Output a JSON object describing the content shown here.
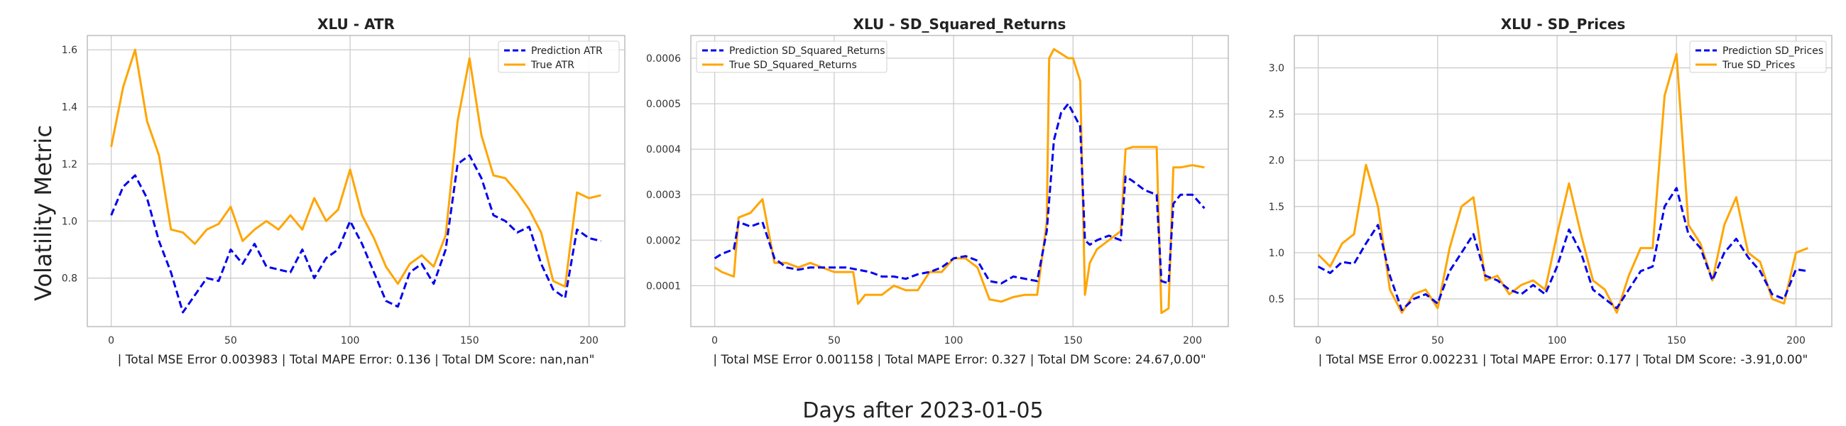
{
  "figure": {
    "xlabel": "Days after 2023-01-05",
    "ylabel": "Volatility Metric"
  },
  "colors": {
    "prediction": "#0000ee",
    "true": "#ffa500",
    "grid": "#cccccc",
    "frame": "#bdbdbd"
  },
  "chart_data": [
    {
      "type": "line",
      "title": "XLU - ATR",
      "caption": "| Total MSE Error 0.003983 | Total MAPE Error: 0.136 | Total DM Score: nan,nan\"",
      "xlim": [
        -10,
        215
      ],
      "ylim": [
        0.63,
        1.65
      ],
      "xticks": [
        0,
        50,
        100,
        150,
        200
      ],
      "yticks": [
        0.8,
        1.0,
        1.2,
        1.4,
        1.6
      ],
      "ytick_labels": [
        "0.8",
        "1.0",
        "1.2",
        "1.4",
        "1.6"
      ],
      "grid": true,
      "legend": "top-right",
      "series": [
        {
          "name": "Prediction ATR",
          "style": "dashed",
          "color": "#0000ee",
          "x": [
            0,
            5,
            10,
            15,
            20,
            25,
            30,
            35,
            40,
            45,
            50,
            55,
            60,
            65,
            70,
            75,
            80,
            85,
            90,
            95,
            100,
            105,
            110,
            115,
            120,
            125,
            130,
            135,
            140,
            145,
            150,
            155,
            160,
            165,
            170,
            175,
            180,
            185,
            190,
            195,
            200,
            205
          ],
          "y": [
            1.02,
            1.12,
            1.16,
            1.08,
            0.93,
            0.82,
            0.68,
            0.74,
            0.8,
            0.79,
            0.9,
            0.85,
            0.92,
            0.84,
            0.83,
            0.82,
            0.9,
            0.8,
            0.87,
            0.9,
            1.0,
            0.92,
            0.82,
            0.72,
            0.7,
            0.82,
            0.85,
            0.78,
            0.9,
            1.2,
            1.23,
            1.15,
            1.02,
            1.0,
            0.96,
            0.98,
            0.85,
            0.76,
            0.73,
            0.97,
            0.94,
            0.93
          ]
        },
        {
          "name": "True ATR",
          "style": "solid",
          "color": "#ffa500",
          "x": [
            0,
            5,
            10,
            15,
            20,
            25,
            30,
            35,
            40,
            45,
            50,
            55,
            60,
            65,
            70,
            75,
            80,
            85,
            90,
            95,
            100,
            105,
            110,
            115,
            120,
            125,
            130,
            135,
            140,
            145,
            150,
            155,
            160,
            165,
            170,
            175,
            180,
            185,
            190,
            195,
            200,
            205
          ],
          "y": [
            1.26,
            1.47,
            1.6,
            1.35,
            1.23,
            0.97,
            0.96,
            0.92,
            0.97,
            0.99,
            1.05,
            0.93,
            0.97,
            1.0,
            0.97,
            1.02,
            0.97,
            1.08,
            1.0,
            1.04,
            1.18,
            1.02,
            0.94,
            0.84,
            0.78,
            0.85,
            0.88,
            0.84,
            0.95,
            1.35,
            1.57,
            1.3,
            1.16,
            1.15,
            1.1,
            1.04,
            0.96,
            0.79,
            0.77,
            1.1,
            1.08,
            1.09
          ]
        }
      ]
    },
    {
      "type": "line",
      "title": "XLU - SD_Squared_Returns",
      "caption": "| Total MSE Error 0.001158 | Total MAPE Error: 0.327 | Total DM Score: 24.67,0.00\"",
      "xlim": [
        -10,
        215
      ],
      "ylim": [
        1e-05,
        0.00065
      ],
      "xticks": [
        0,
        50,
        100,
        150,
        200
      ],
      "yticks": [
        0.0001,
        0.0002,
        0.0003,
        0.0004,
        0.0005,
        0.0006
      ],
      "ytick_labels": [
        "0.0001",
        "0.0002",
        "0.0003",
        "0.0004",
        "0.0005",
        "0.0006"
      ],
      "grid": true,
      "legend": "top-left",
      "series": [
        {
          "name": "Prediction SD_Squared_Returns",
          "style": "dashed",
          "color": "#0000ee",
          "x": [
            0,
            3,
            8,
            10,
            15,
            20,
            25,
            30,
            35,
            40,
            45,
            50,
            55,
            60,
            65,
            70,
            75,
            80,
            85,
            90,
            95,
            100,
            105,
            110,
            115,
            120,
            125,
            130,
            135,
            139,
            142,
            145,
            148,
            150,
            153,
            155,
            157,
            160,
            165,
            170,
            172,
            175,
            180,
            185,
            187,
            190,
            192,
            195,
            200,
            205
          ],
          "y": [
            0.00016,
            0.00017,
            0.00018,
            0.00024,
            0.00023,
            0.00024,
            0.00016,
            0.00014,
            0.000135,
            0.00014,
            0.00014,
            0.00014,
            0.00014,
            0.000135,
            0.00013,
            0.00012,
            0.00012,
            0.000115,
            0.000125,
            0.00013,
            0.00014,
            0.00016,
            0.000165,
            0.000155,
            0.00011,
            0.000105,
            0.00012,
            0.000115,
            0.00011,
            0.00022,
            0.00042,
            0.00048,
            0.0005,
            0.00048,
            0.00045,
            0.0002,
            0.00019,
            0.0002,
            0.00021,
            0.0002,
            0.00034,
            0.00033,
            0.00031,
            0.0003,
            0.00011,
            0.000105,
            0.00028,
            0.0003,
            0.0003,
            0.00027
          ]
        },
        {
          "name": "True SD_Squared_Returns",
          "style": "solid",
          "color": "#ffa500",
          "x": [
            0,
            3,
            8,
            10,
            15,
            20,
            25,
            30,
            35,
            40,
            45,
            50,
            55,
            58,
            60,
            63,
            65,
            70,
            75,
            80,
            85,
            90,
            95,
            100,
            105,
            110,
            115,
            120,
            125,
            130,
            135,
            139,
            140,
            142,
            145,
            148,
            150,
            153,
            155,
            157,
            160,
            165,
            170,
            172,
            175,
            180,
            185,
            187,
            190,
            192,
            195,
            200,
            205
          ],
          "y": [
            0.00014,
            0.00013,
            0.00012,
            0.00025,
            0.00026,
            0.00029,
            0.00015,
            0.00015,
            0.00014,
            0.00015,
            0.00014,
            0.00013,
            0.00013,
            0.00013,
            6e-05,
            8e-05,
            8e-05,
            8e-05,
            0.0001,
            9e-05,
            9e-05,
            0.00013,
            0.00013,
            0.00016,
            0.00016,
            0.00014,
            7e-05,
            6.5e-05,
            7.5e-05,
            8e-05,
            8e-05,
            0.00024,
            0.0006,
            0.00062,
            0.00061,
            0.0006,
            0.0006,
            0.00055,
            8e-05,
            0.00015,
            0.00018,
            0.0002,
            0.00022,
            0.0004,
            0.000405,
            0.000405,
            0.000405,
            4e-05,
            5e-05,
            0.00036,
            0.00036,
            0.000365,
            0.00036
          ]
        }
      ]
    },
    {
      "type": "line",
      "title": "XLU - SD_Prices",
      "caption": "| Total MSE Error 0.002231 | Total MAPE Error: 0.177 | Total DM Score: -3.91,0.00\"",
      "xlim": [
        -10,
        215
      ],
      "ylim": [
        0.2,
        3.35
      ],
      "xticks": [
        0,
        50,
        100,
        150,
        200
      ],
      "yticks": [
        0.5,
        1.0,
        1.5,
        2.0,
        2.5,
        3.0
      ],
      "ytick_labels": [
        "0.5",
        "1.0",
        "1.5",
        "2.0",
        "2.5",
        "3.0"
      ],
      "grid": true,
      "legend": "top-right",
      "series": [
        {
          "name": "Prediction SD_Prices",
          "style": "dashed",
          "color": "#0000ee",
          "x": [
            0,
            5,
            10,
            15,
            20,
            25,
            30,
            35,
            40,
            45,
            50,
            55,
            60,
            65,
            70,
            75,
            80,
            85,
            90,
            95,
            100,
            105,
            110,
            115,
            120,
            125,
            130,
            135,
            140,
            145,
            150,
            155,
            160,
            165,
            170,
            175,
            180,
            185,
            190,
            195,
            200,
            205
          ],
          "y": [
            0.85,
            0.78,
            0.9,
            0.88,
            1.1,
            1.3,
            0.75,
            0.38,
            0.5,
            0.55,
            0.45,
            0.8,
            1.0,
            1.2,
            0.75,
            0.7,
            0.6,
            0.55,
            0.65,
            0.55,
            0.85,
            1.25,
            1.0,
            0.6,
            0.5,
            0.4,
            0.6,
            0.8,
            0.85,
            1.5,
            1.7,
            1.2,
            1.05,
            0.7,
            1.0,
            1.15,
            0.95,
            0.8,
            0.55,
            0.5,
            0.82,
            0.8
          ]
        },
        {
          "name": "True SD_Prices",
          "style": "solid",
          "color": "#ffa500",
          "x": [
            0,
            5,
            10,
            15,
            20,
            25,
            30,
            35,
            40,
            45,
            50,
            55,
            60,
            65,
            70,
            75,
            80,
            85,
            90,
            95,
            100,
            105,
            110,
            115,
            120,
            125,
            130,
            135,
            140,
            145,
            150,
            155,
            160,
            165,
            170,
            175,
            180,
            185,
            190,
            195,
            200,
            205
          ],
          "y": [
            0.98,
            0.85,
            1.1,
            1.2,
            1.95,
            1.5,
            0.6,
            0.35,
            0.55,
            0.6,
            0.4,
            1.05,
            1.5,
            1.6,
            0.7,
            0.75,
            0.55,
            0.65,
            0.7,
            0.6,
            1.2,
            1.75,
            1.2,
            0.7,
            0.6,
            0.35,
            0.75,
            1.05,
            1.05,
            2.7,
            3.15,
            1.3,
            1.1,
            0.7,
            1.3,
            1.6,
            1.0,
            0.9,
            0.5,
            0.45,
            1.0,
            1.05
          ]
        }
      ]
    }
  ]
}
